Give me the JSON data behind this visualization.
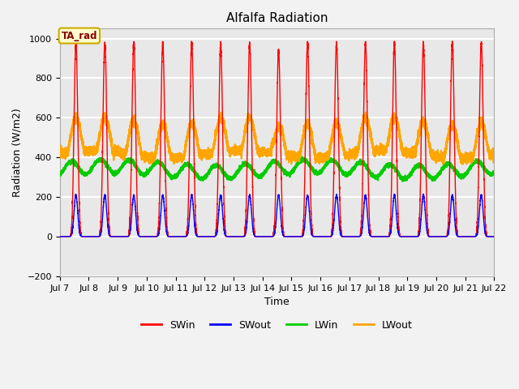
{
  "title": "Alfalfa Radiation",
  "xlabel": "Time",
  "ylabel": "Radiation (W/m2)",
  "ylim": [
    -200,
    1050
  ],
  "xlim_days": [
    7,
    22
  ],
  "x_ticks": [
    7,
    8,
    9,
    10,
    11,
    12,
    13,
    14,
    15,
    16,
    17,
    18,
    19,
    20,
    21,
    22
  ],
  "x_tick_labels": [
    "Jul 7",
    "Jul 8",
    "Jul 9",
    "Jul 10",
    "Jul 11",
    "Jul 12",
    "Jul 13",
    "Jul 14",
    "Jul 15",
    "Jul 16",
    "Jul 17",
    "Jul 18",
    "Jul 19",
    "Jul 20",
    "Jul 21",
    "Jul 22"
  ],
  "series": {
    "SWin": {
      "color": "#ff0000",
      "linewidth": 1.0
    },
    "SWout": {
      "color": "#0000ff",
      "linewidth": 1.0
    },
    "LWin": {
      "color": "#00cc00",
      "linewidth": 1.5
    },
    "LWout": {
      "color": "#ffa500",
      "linewidth": 1.5
    }
  },
  "legend_label": "TA_rad",
  "legend_box_facecolor": "#ffffcc",
  "legend_box_edgecolor": "#ccaa00",
  "plot_bg_color": "#e8e8e8",
  "fig_bg_color": "#f2f2f2",
  "grid_color": "#ffffff",
  "SWin_peak": 980,
  "SWout_peak": 210,
  "SWin_narrow_power": 8,
  "LWin_base": 340,
  "LWin_amplitude": 35,
  "LWout_base": 415,
  "LWout_amplitude": 170
}
